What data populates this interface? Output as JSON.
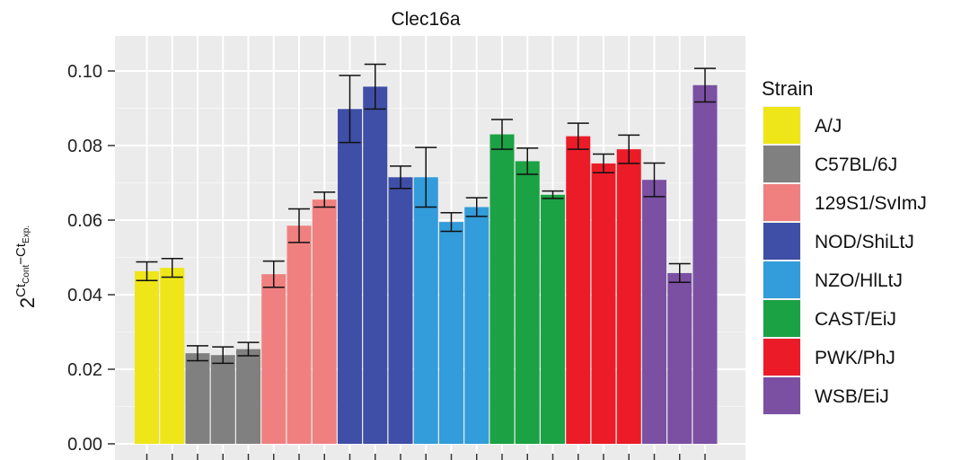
{
  "chart_data": {
    "type": "bar",
    "title": "Clec16a",
    "ylabel": {
      "base": "2",
      "exp_ct1": "Ct",
      "exp_sub1": "Cont",
      "exp_minus": "−",
      "exp_ct2": "Ct",
      "exp_sub2": "Exp."
    },
    "ylim": [
      0,
      0.11
    ],
    "yticks": [
      "0.00",
      "0.02",
      "0.04",
      "0.06",
      "0.08",
      "0.10"
    ],
    "grid": true,
    "legend": {
      "title": "Strain",
      "position": "right",
      "entries": [
        {
          "name": "A/J",
          "color": "#EEE619"
        },
        {
          "name": "C57BL/6J",
          "color": "#808080"
        },
        {
          "name": "129S1/SvImJ",
          "color": "#F08080"
        },
        {
          "name": "NOD/ShiLtJ",
          "color": "#3F4FA7"
        },
        {
          "name": "NZO/HlLtJ",
          "color": "#339CDA"
        },
        {
          "name": "CAST/EiJ",
          "color": "#1BA244"
        },
        {
          "name": "PWK/PhJ",
          "color": "#EB1C28"
        },
        {
          "name": "WSB/EiJ",
          "color": "#7B50A3"
        }
      ]
    },
    "bars": [
      {
        "strain": 0,
        "value": 0.0463,
        "err": 0.0025
      },
      {
        "strain": 0,
        "value": 0.0472,
        "err": 0.0025
      },
      {
        "strain": 1,
        "value": 0.0243,
        "err": 0.002
      },
      {
        "strain": 1,
        "value": 0.0238,
        "err": 0.0022
      },
      {
        "strain": 1,
        "value": 0.0254,
        "err": 0.0018
      },
      {
        "strain": 2,
        "value": 0.0455,
        "err": 0.0035
      },
      {
        "strain": 2,
        "value": 0.0585,
        "err": 0.0045
      },
      {
        "strain": 2,
        "value": 0.0655,
        "err": 0.002
      },
      {
        "strain": 3,
        "value": 0.0898,
        "err": 0.009
      },
      {
        "strain": 3,
        "value": 0.0958,
        "err": 0.006
      },
      {
        "strain": 3,
        "value": 0.0715,
        "err": 0.003
      },
      {
        "strain": 4,
        "value": 0.0715,
        "err": 0.008
      },
      {
        "strain": 4,
        "value": 0.0595,
        "err": 0.0025
      },
      {
        "strain": 4,
        "value": 0.0635,
        "err": 0.0025
      },
      {
        "strain": 5,
        "value": 0.083,
        "err": 0.004
      },
      {
        "strain": 5,
        "value": 0.0758,
        "err": 0.0035
      },
      {
        "strain": 5,
        "value": 0.0668,
        "err": 0.001
      },
      {
        "strain": 6,
        "value": 0.0825,
        "err": 0.0035
      },
      {
        "strain": 6,
        "value": 0.0752,
        "err": 0.0025
      },
      {
        "strain": 6,
        "value": 0.079,
        "err": 0.0038
      },
      {
        "strain": 7,
        "value": 0.0708,
        "err": 0.0045
      },
      {
        "strain": 7,
        "value": 0.0458,
        "err": 0.0025
      },
      {
        "strain": 7,
        "value": 0.0962,
        "err": 0.0045
      }
    ]
  }
}
